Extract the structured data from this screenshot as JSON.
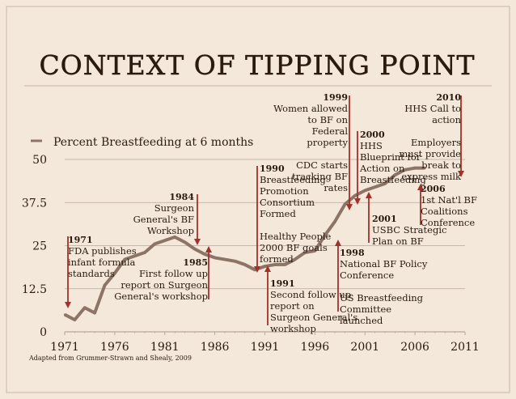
{
  "slide_title": "CONTEXT OF TIPPING POINT",
  "source_note": "Adapted from Grummer-Strawn and Shealy, 2009",
  "colors": {
    "background": "#f3e8da",
    "line": "#8c7466",
    "arrow": "#a3302a",
    "text": "#2a1a10",
    "grid": "#b7a99c"
  },
  "chart_data": {
    "type": "line",
    "title": "",
    "xlabel": "",
    "ylabel": "",
    "xlim": [
      1971,
      2011
    ],
    "ylim": [
      0,
      50
    ],
    "x_ticks": [
      "1971",
      "1976",
      "1981",
      "1986",
      "1991",
      "1996",
      "2001",
      "2006",
      "2011"
    ],
    "y_ticks": [
      "0",
      "12.5",
      "25",
      "37.5",
      "50"
    ],
    "grid": true,
    "legend": "top-left",
    "series": [
      {
        "name": "Percent Breastfeeding at 6 months",
        "x": [
          1971,
          1972,
          1973,
          1974,
          1975,
          1976,
          1977,
          1978,
          1979,
          1980,
          1981,
          1982,
          1983,
          1984,
          1985,
          1986,
          1987,
          1988,
          1989,
          1990,
          1991,
          1992,
          1993,
          1994,
          1995,
          1996,
          1997,
          1998,
          1999,
          2000,
          2001,
          2002,
          2003,
          2004,
          2005,
          2006,
          2007
        ],
        "values": [
          5,
          3.5,
          7,
          5.5,
          13.5,
          17,
          21,
          22,
          23,
          25.5,
          26.5,
          27.5,
          26,
          24,
          22.5,
          21.5,
          21,
          20.5,
          19.5,
          18,
          19,
          19.5,
          19.5,
          21,
          23,
          23.5,
          28,
          32,
          37,
          39.5,
          41,
          42,
          43,
          45.5,
          47,
          47.5,
          47.5
        ]
      }
    ],
    "annotations": [
      {
        "year": "1971",
        "lines": [
          "FDA publishes",
          "infant formula",
          "standards"
        ]
      },
      {
        "year": "1984",
        "lines": [
          "Surgeon",
          "General's BF",
          "Workshop"
        ]
      },
      {
        "year": "1985",
        "lines": [
          "First follow up",
          "report on Surgeon",
          "General's workshop"
        ]
      },
      {
        "year": "1990",
        "lines": [
          "Breastfeeding",
          "Promotion",
          "Consortium",
          "Formed",
          "",
          "Healthy People",
          "2000 BF goals",
          "formed"
        ]
      },
      {
        "year": "1991",
        "lines": [
          "Second follow up",
          "report on",
          "Surgeon General's",
          "workshop"
        ]
      },
      {
        "year": "1998",
        "lines": [
          "National BF Policy",
          "Conference",
          "",
          "US Breastfeeding",
          "Committee",
          "launched"
        ]
      },
      {
        "year": "1999",
        "lines": [
          "Women allowed",
          "to BF on",
          "Federal",
          "property",
          "",
          "CDC starts",
          "tracking BF",
          "rates"
        ]
      },
      {
        "year": "2000",
        "lines": [
          "HHS",
          "Blueprint for",
          "Action on",
          "Breastfeeding"
        ]
      },
      {
        "year": "2001",
        "lines": [
          "USBC Strategic",
          "Plan on BF"
        ]
      },
      {
        "year": "2006",
        "lines": [
          "1st Nat'l BF",
          "Coalitions",
          "Conference"
        ]
      },
      {
        "year": "2010",
        "lines": [
          "HHS Call to",
          "action",
          "",
          "Employers",
          "must provide",
          "break to",
          "express milk"
        ]
      }
    ]
  }
}
